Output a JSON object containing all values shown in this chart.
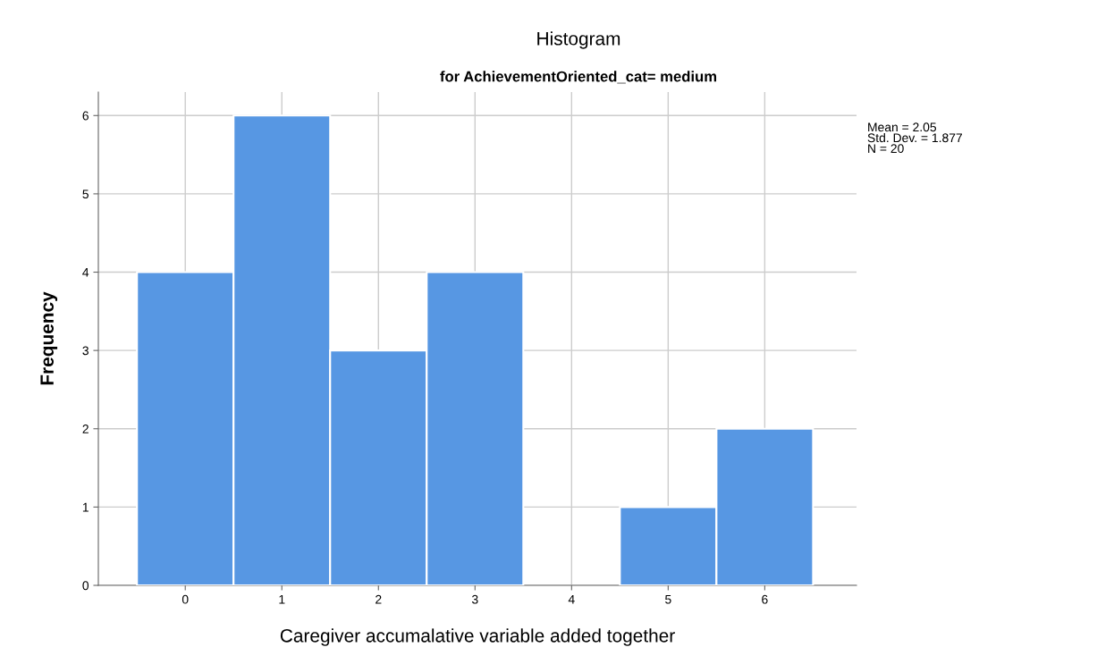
{
  "chart_data": {
    "type": "histogram",
    "title": "Histogram",
    "subtitle": "for AchievementOriented_cat= medium",
    "xlabel": "Caregiver accumalative variable added together",
    "ylabel": "Frequency",
    "bins": [
      -0.5,
      0.5,
      1.5,
      2.5,
      3.5,
      4.5,
      5.5,
      6.5
    ],
    "values": [
      4,
      6,
      3,
      4,
      0,
      1,
      2
    ],
    "color": "#5797e3",
    "xlim": [
      -0.9,
      6.95
    ],
    "xticks": [
      0,
      1,
      2,
      3,
      4,
      5,
      6
    ],
    "ylim": [
      0,
      6.3
    ],
    "yticks": [
      0,
      1,
      2,
      3,
      4,
      5,
      6
    ],
    "grid": true,
    "annotations": [
      "Mean = 2.05\nStd. Dev. = 1.877\nN = 20"
    ]
  }
}
